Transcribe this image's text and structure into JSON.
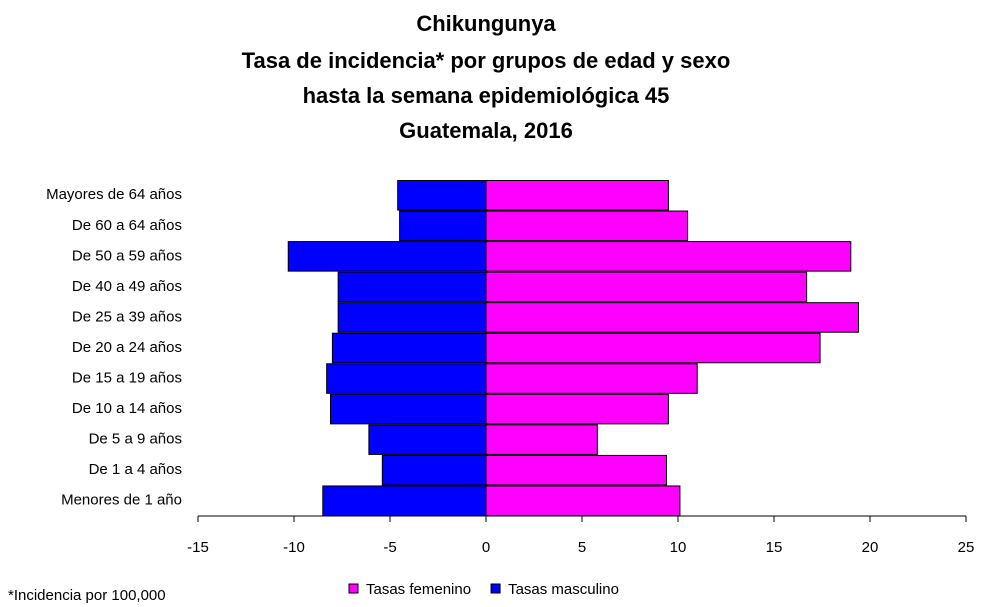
{
  "chart_data": {
    "type": "pyramid",
    "title": [
      "Chikungunya",
      "Tasa de incidencia* por grupos de edad y sexo",
      "hasta la semana epidemiológica 45",
      "Guatemala, 2016"
    ],
    "categories": [
      "Mayores de 64 años",
      "De 60 a 64 años",
      "De 50 a 59 años",
      "De 40 a 49 años",
      "De 25 a 39 años",
      "De 20 a 24 años",
      "De 15 a 19 años",
      "De 10 a 14 años",
      "De 5 a 9 años",
      "De 1 a 4 años",
      "Menores de 1 año"
    ],
    "series": [
      {
        "name": "Tasas femenino",
        "color": "#ff00ff",
        "values": [
          9.5,
          10.5,
          19.0,
          16.7,
          19.4,
          17.4,
          11.0,
          9.5,
          5.8,
          9.4,
          10.1
        ]
      },
      {
        "name": "Tasas masculino",
        "color": "#0000ff",
        "values": [
          -4.6,
          -4.5,
          -10.3,
          -7.7,
          -7.7,
          -8.0,
          -8.3,
          -8.1,
          -6.1,
          -5.4,
          -8.5
        ]
      }
    ],
    "xlim": [
      -15,
      25
    ],
    "xticks": [
      -15,
      -10,
      -5,
      0,
      5,
      10,
      15,
      20,
      25
    ],
    "footnote": "*Incidencia por 100,000",
    "legend": "bottom"
  }
}
